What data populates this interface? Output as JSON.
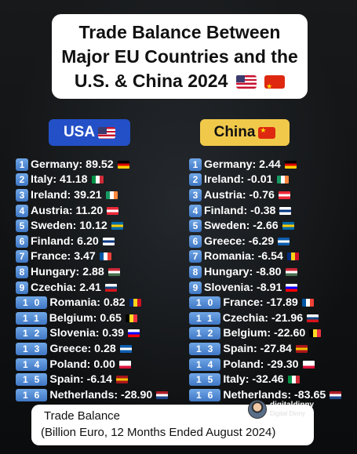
{
  "title": {
    "line1": "Trade Balance Between",
    "line2": "Major EU Countries and the",
    "line3": "U.S. & China 2024"
  },
  "usa": {
    "label": "USA",
    "rows": [
      {
        "num": "1",
        "text": "Germany: 89.52",
        "flag": [
          "#000000",
          "#dd0000",
          "#ffce00"
        ],
        "dir": "h"
      },
      {
        "num": "2",
        "text": "Italy: 41.18",
        "flag": [
          "#009246",
          "#ffffff",
          "#ce2b37"
        ],
        "dir": "v"
      },
      {
        "num": "3",
        "text": "Ireland: 39.21",
        "flag": [
          "#169b62",
          "#ffffff",
          "#ff883e"
        ],
        "dir": "v"
      },
      {
        "num": "4",
        "text": "Austria: 11.20",
        "flag": [
          "#ed2939",
          "#ffffff",
          "#ed2939"
        ],
        "dir": "h"
      },
      {
        "num": "5",
        "text": "Sweden: 10.12",
        "flag": [
          "#006aa7",
          "#fecc00",
          "#006aa7"
        ],
        "dir": "h"
      },
      {
        "num": "6",
        "text": "Finland: 6.20",
        "flag": [
          "#ffffff",
          "#003580",
          "#ffffff"
        ],
        "dir": "h"
      },
      {
        "num": "7",
        "text": "France: 3.47",
        "flag": [
          "#0055a4",
          "#ffffff",
          "#ef4135"
        ],
        "dir": "v"
      },
      {
        "num": "8",
        "text": "Hungary: 2.88",
        "flag": [
          "#ce2939",
          "#ffffff",
          "#477050"
        ],
        "dir": "h"
      },
      {
        "num": "9",
        "text": "Czechia: 2.41",
        "flag": [
          "#ffffff",
          "#11457e",
          "#d7141a"
        ],
        "dir": "h"
      },
      {
        "num": "10",
        "text": "Romania: 0.82",
        "flag": [
          "#002b7f",
          "#fcd116",
          "#ce1126"
        ],
        "dir": "v"
      },
      {
        "num": "11",
        "text": "Belgium: 0.65",
        "flag": [
          "#000000",
          "#fdda24",
          "#ef3340"
        ],
        "dir": "v"
      },
      {
        "num": "12",
        "text": "Slovenia: 0.39",
        "flag": [
          "#ffffff",
          "#0000ff",
          "#ff0000"
        ],
        "dir": "h"
      },
      {
        "num": "13",
        "text": "Greece: 0.28",
        "flag": [
          "#0d5eaf",
          "#ffffff",
          "#0d5eaf"
        ],
        "dir": "h"
      },
      {
        "num": "14",
        "text": "Poland: 0.00",
        "flag": [
          "#ffffff",
          "#ffffff",
          "#dc143c"
        ],
        "dir": "h"
      },
      {
        "num": "15",
        "text": "Spain: -6.14",
        "flag": [
          "#aa151b",
          "#f1bf00",
          "#aa151b"
        ],
        "dir": "h"
      },
      {
        "num": "16",
        "text": "Netherlands: -28.90",
        "flag": [
          "#ae1c28",
          "#ffffff",
          "#21468b"
        ],
        "dir": "h"
      }
    ]
  },
  "china": {
    "label": "China",
    "rows": [
      {
        "num": "1",
        "text": "Germany: 2.44",
        "flag": [
          "#000000",
          "#dd0000",
          "#ffce00"
        ],
        "dir": "h"
      },
      {
        "num": "2",
        "text": "Ireland: -0.01",
        "flag": [
          "#169b62",
          "#ffffff",
          "#ff883e"
        ],
        "dir": "v"
      },
      {
        "num": "3",
        "text": "Austria: -0.76",
        "flag": [
          "#ed2939",
          "#ffffff",
          "#ed2939"
        ],
        "dir": "h"
      },
      {
        "num": "4",
        "text": "Finland: -0.38",
        "flag": [
          "#ffffff",
          "#003580",
          "#ffffff"
        ],
        "dir": "h"
      },
      {
        "num": "5",
        "text": "Sweden: -2.66",
        "flag": [
          "#006aa7",
          "#fecc00",
          "#006aa7"
        ],
        "dir": "h"
      },
      {
        "num": "6",
        "text": "Greece: -6.29",
        "flag": [
          "#0d5eaf",
          "#ffffff",
          "#0d5eaf"
        ],
        "dir": "h"
      },
      {
        "num": "7",
        "text": "Romania: -6.54",
        "flag": [
          "#002b7f",
          "#fcd116",
          "#ce1126"
        ],
        "dir": "v"
      },
      {
        "num": "8",
        "text": "Hungary: -8.80",
        "flag": [
          "#ce2939",
          "#ffffff",
          "#477050"
        ],
        "dir": "h"
      },
      {
        "num": "9",
        "text": "Slovenia: -8.91",
        "flag": [
          "#ffffff",
          "#0000ff",
          "#ff0000"
        ],
        "dir": "h"
      },
      {
        "num": "10",
        "text": "France: -17.89",
        "flag": [
          "#0055a4",
          "#ffffff",
          "#ef4135"
        ],
        "dir": "v"
      },
      {
        "num": "11",
        "text": "Czechia: -21.96",
        "flag": [
          "#ffffff",
          "#11457e",
          "#d7141a"
        ],
        "dir": "h"
      },
      {
        "num": "12",
        "text": "Belgium: -22.60",
        "flag": [
          "#000000",
          "#fdda24",
          "#ef3340"
        ],
        "dir": "v"
      },
      {
        "num": "13",
        "text": "Spain: -27.84",
        "flag": [
          "#aa151b",
          "#f1bf00",
          "#aa151b"
        ],
        "dir": "h"
      },
      {
        "num": "14",
        "text": "Poland: -29.30",
        "flag": [
          "#ffffff",
          "#ffffff",
          "#dc143c"
        ],
        "dir": "h"
      },
      {
        "num": "15",
        "text": "Italy: -32.46",
        "flag": [
          "#009246",
          "#ffffff",
          "#ce2b37"
        ],
        "dir": "v"
      },
      {
        "num": "16",
        "text": "Netherlands: -83.65",
        "flag": [
          "#ae1c28",
          "#ffffff",
          "#21468b"
        ],
        "dir": "h"
      }
    ]
  },
  "footer": {
    "line1": "Trade Balance",
    "line2": "(Billion Euro, 12 Months Ended August 2024)"
  },
  "brand": {
    "name": "digitaldinny",
    "sub": "Digital Dinny"
  },
  "colors": {
    "usa_pill": "#2450c7",
    "china_pill": "#f1c94a",
    "number_badge": "#4f86d3"
  }
}
